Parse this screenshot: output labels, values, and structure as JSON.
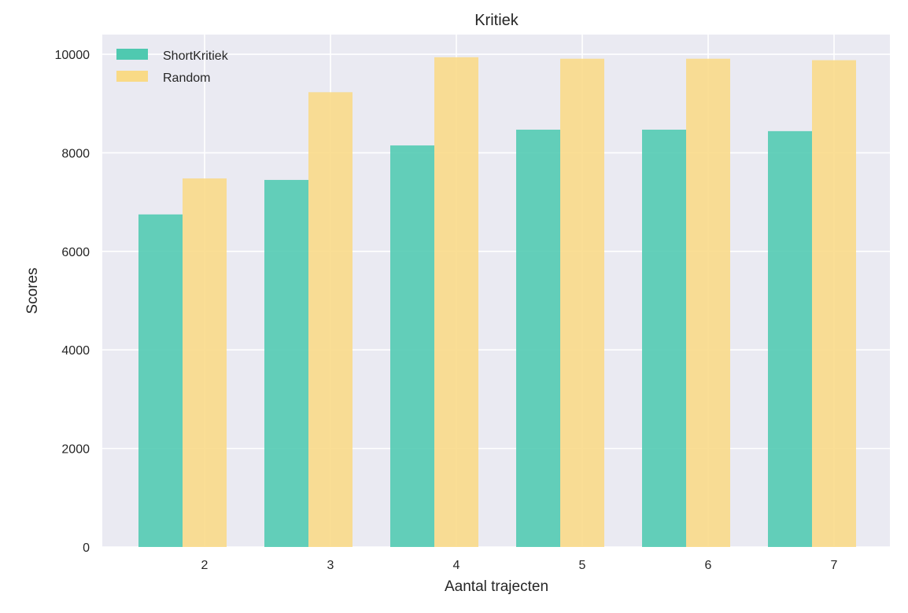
{
  "chart_data": {
    "type": "bar",
    "title": "Kritiek",
    "xlabel": "Aantal trajecten",
    "ylabel": "Scores",
    "categories": [
      "2",
      "3",
      "4",
      "5",
      "6",
      "7"
    ],
    "series": [
      {
        "name": "ShortKritiek",
        "color": "#4fc9b0",
        "values": [
          6750,
          7450,
          8150,
          8470,
          8470,
          8440
        ]
      },
      {
        "name": "Random",
        "color": "#f9da86",
        "values": [
          7480,
          9230,
          9940,
          9910,
          9910,
          9880
        ]
      }
    ],
    "ylim": [
      0,
      10400
    ],
    "yticks": [
      "0",
      "2000",
      "4000",
      "6000",
      "8000",
      "10000"
    ],
    "grid": true,
    "legend": "top-left",
    "background_color": "#eaeaf2"
  }
}
